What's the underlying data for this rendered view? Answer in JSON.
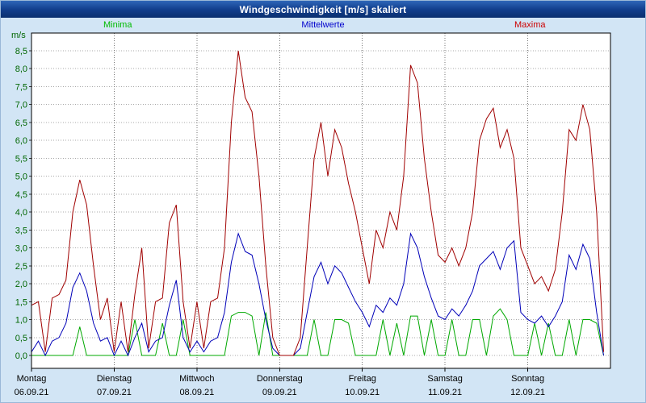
{
  "chart_data": {
    "type": "line",
    "title": "Windgeschwindigkeit [m/s] skaliert",
    "ylabel": "m/s",
    "ylim": [
      0,
      8.5
    ],
    "ytick_step": 0.5,
    "grid": true,
    "legend_position": "top",
    "axis_color": "#006600",
    "x_days": [
      "Montag",
      "Dienstag",
      "Mittwoch",
      "Donnerstag",
      "Freitag",
      "Samstag",
      "Sonntag"
    ],
    "x_dates": [
      "06.09.21",
      "07.09.21",
      "08.09.21",
      "09.09.21",
      "10.09.21",
      "11.09.21",
      "12.09.21"
    ],
    "points_per_day": 12,
    "series": [
      {
        "name": "Minima",
        "color": "#00a800",
        "legend_color": "#00bb00",
        "values": [
          0,
          0,
          0,
          0,
          0,
          0,
          0,
          0.8,
          0,
          0,
          0,
          0,
          0,
          0,
          0,
          1.0,
          0,
          0,
          0,
          0.9,
          0,
          0,
          1.0,
          0,
          0,
          0,
          0,
          0,
          0,
          1.1,
          1.2,
          1.2,
          1.1,
          0,
          1.2,
          0,
          0,
          0,
          0,
          0,
          0,
          1.0,
          0,
          0,
          1.0,
          1.0,
          0.9,
          0,
          0,
          0,
          0,
          1.0,
          0,
          0.9,
          0,
          1.1,
          1.1,
          0,
          1.0,
          0,
          0,
          1.0,
          0,
          0,
          1.0,
          1.0,
          0,
          1.1,
          1.3,
          1.0,
          0,
          0,
          0,
          0.9,
          0,
          0.9,
          0,
          0,
          1.0,
          0,
          1.0,
          1.0,
          0.9,
          0
        ]
      },
      {
        "name": "Mittelwerte",
        "color": "#0000b8",
        "legend_color": "#0000cc",
        "values": [
          0.1,
          0.4,
          0.0,
          0.4,
          0.5,
          0.9,
          1.9,
          2.3,
          1.8,
          0.9,
          0.4,
          0.5,
          0.0,
          0.4,
          0.0,
          0.5,
          0.9,
          0.1,
          0.4,
          0.5,
          1.4,
          2.1,
          0.5,
          0.1,
          0.4,
          0.1,
          0.4,
          0.5,
          1.2,
          2.6,
          3.4,
          2.9,
          2.8,
          2.0,
          1.0,
          0.2,
          0.0,
          0.0,
          0.0,
          0.2,
          1.2,
          2.2,
          2.6,
          2.0,
          2.5,
          2.3,
          1.9,
          1.5,
          1.2,
          0.8,
          1.4,
          1.2,
          1.6,
          1.4,
          2.0,
          3.4,
          3.0,
          2.2,
          1.6,
          1.1,
          1.0,
          1.3,
          1.1,
          1.4,
          1.8,
          2.5,
          2.7,
          2.9,
          2.4,
          3.0,
          3.2,
          1.2,
          1.0,
          0.9,
          1.1,
          0.8,
          1.1,
          1.5,
          2.8,
          2.4,
          3.1,
          2.7,
          1.2,
          0.0
        ]
      },
      {
        "name": "Maxima",
        "color": "#a00000",
        "legend_color": "#cc0000",
        "values": [
          1.4,
          1.5,
          0.1,
          1.6,
          1.7,
          2.1,
          4.0,
          4.9,
          4.2,
          2.5,
          1.0,
          1.6,
          0.1,
          1.5,
          0.1,
          1.7,
          3.0,
          0.2,
          1.5,
          1.6,
          3.7,
          4.2,
          1.5,
          0.2,
          1.5,
          0.2,
          1.5,
          1.6,
          3.0,
          6.5,
          8.5,
          7.2,
          6.8,
          5.0,
          2.5,
          0.5,
          0.0,
          0.0,
          0.0,
          0.5,
          3.0,
          5.5,
          6.5,
          5.0,
          6.3,
          5.8,
          4.8,
          4.0,
          3.0,
          2.0,
          3.5,
          3.0,
          4.0,
          3.5,
          5.0,
          8.1,
          7.6,
          5.5,
          4.0,
          2.8,
          2.6,
          3.0,
          2.5,
          3.0,
          4.0,
          6.0,
          6.6,
          6.9,
          5.8,
          6.3,
          5.5,
          3.0,
          2.5,
          2.0,
          2.2,
          1.8,
          2.4,
          4.0,
          6.3,
          6.0,
          7.0,
          6.3,
          4.0,
          0.1
        ]
      }
    ]
  }
}
